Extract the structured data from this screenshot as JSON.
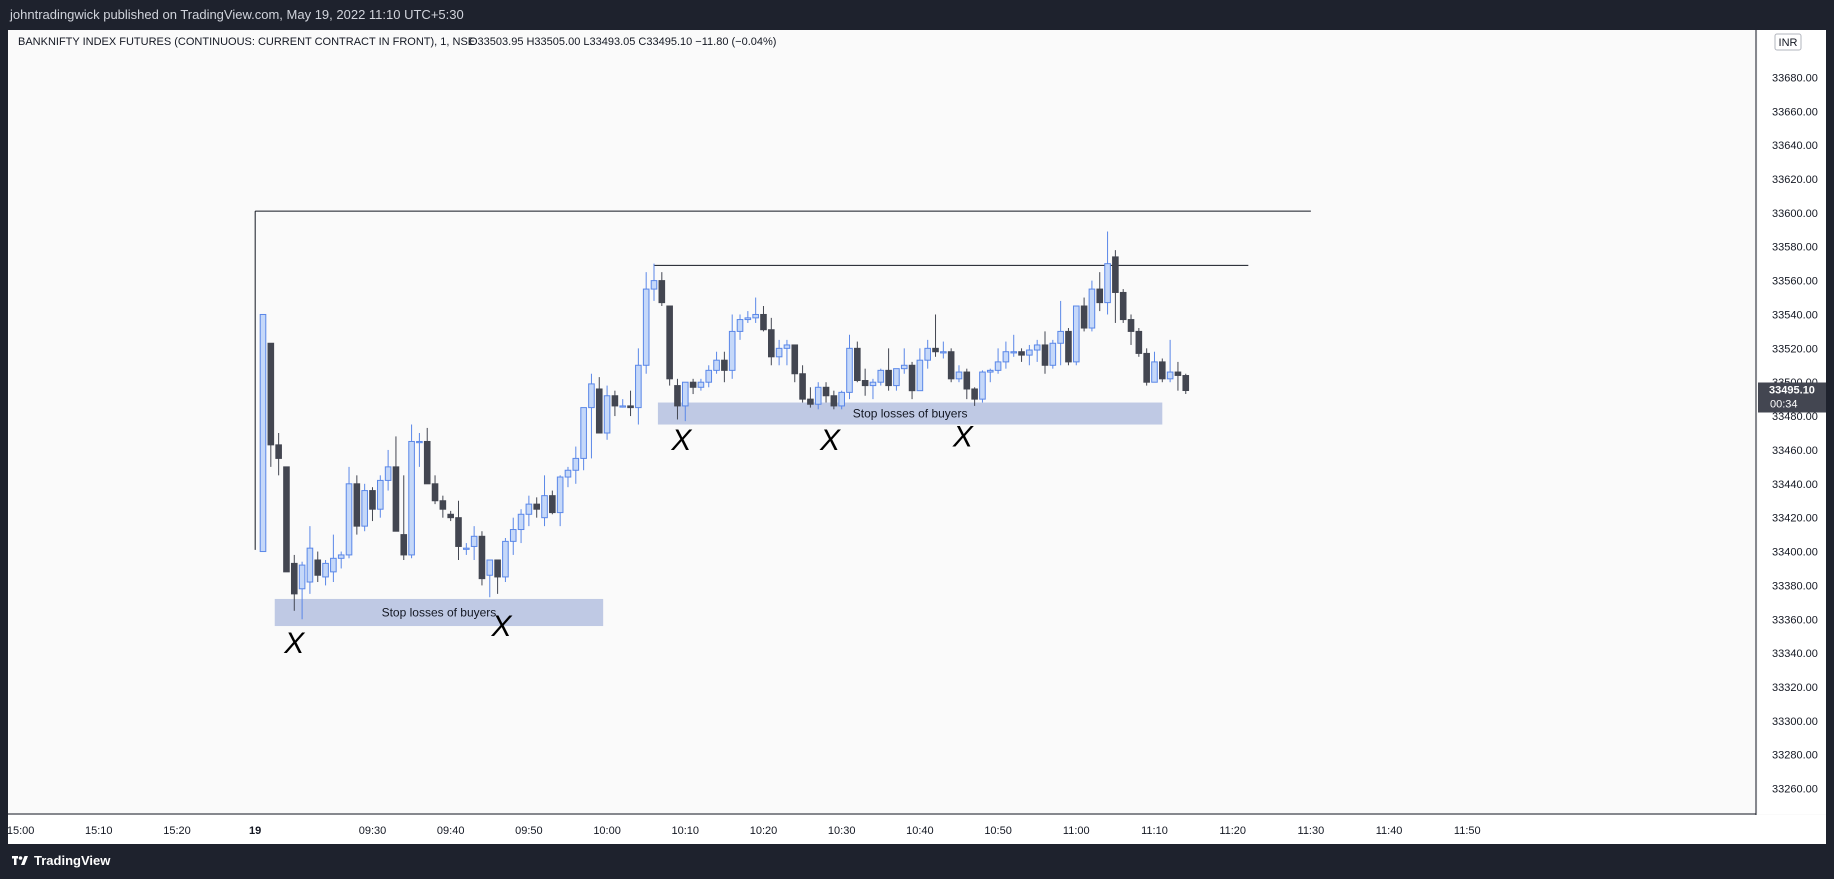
{
  "header": {
    "publisher": "johntradingwick published on TradingView.com, May 19, 2022 11:10 UTC+5:30"
  },
  "footer": {
    "brand": "TradingView"
  },
  "currency_badge": "INR",
  "legend": {
    "symbol": "BANKNIFTY INDEX FUTURES (CONTINUOUS: CURRENT CONTRACT IN FRONT), 1, NSE",
    "ohlc": "O33503.95  H33505.00  L33493.05  C33495.10  −11.80 (−0.04%)"
  },
  "price_tag": {
    "price": "33495.10",
    "countdown": "00:34"
  },
  "colors": {
    "up_fill": "#c5d8f9",
    "up_border": "#5a87e8",
    "down": "#434651",
    "zone": "#bcc6e3",
    "line": "#131722"
  },
  "chart_data": {
    "type": "candlestick",
    "title": "BANKNIFTY INDEX FUTURES (CONTINUOUS: CURRENT CONTRACT IN FRONT), 1, NSE",
    "y_axis": {
      "min": 33245,
      "max": 33708,
      "ticks": [
        33260,
        33280,
        33300,
        33320,
        33340,
        33360,
        33380,
        33400,
        33420,
        33440,
        33460,
        33480,
        33500,
        33520,
        33540,
        33560,
        33580,
        33600,
        33620,
        33640,
        33660,
        33680
      ],
      "position": "right"
    },
    "x_ticks": [
      {
        "label": "15:00",
        "i": -31
      },
      {
        "label": "15:10",
        "i": -21
      },
      {
        "label": "15:20",
        "i": -11
      },
      {
        "label": "19",
        "i": -1
      },
      {
        "label": "09:30",
        "i": 14
      },
      {
        "label": "09:40",
        "i": 24
      },
      {
        "label": "09:50",
        "i": 34
      },
      {
        "label": "10:00",
        "i": 44
      },
      {
        "label": "10:10",
        "i": 54
      },
      {
        "label": "10:20",
        "i": 64
      },
      {
        "label": "10:30",
        "i": 74
      },
      {
        "label": "10:40",
        "i": 84
      },
      {
        "label": "10:50",
        "i": 94
      },
      {
        "label": "11:00",
        "i": 104
      },
      {
        "label": "11:10",
        "i": 114
      },
      {
        "label": "11:20",
        "i": 124
      },
      {
        "label": "11:30",
        "i": 134
      },
      {
        "label": "11:40",
        "i": 144
      },
      {
        "label": "11:50",
        "i": 154
      }
    ],
    "candles": [
      [
        33400,
        33540,
        33400,
        33540
      ],
      [
        33523,
        33523,
        33450,
        33463
      ],
      [
        33463,
        33470,
        33445,
        33455
      ],
      [
        33450,
        33450,
        33388,
        33388
      ],
      [
        33393,
        33398,
        33365,
        33375
      ],
      [
        33378,
        33394,
        33360,
        33392
      ],
      [
        33382,
        33415,
        33375,
        33402
      ],
      [
        33395,
        33400,
        33382,
        33386
      ],
      [
        33385,
        33395,
        33380,
        33393
      ],
      [
        33388,
        33410,
        33382,
        33396
      ],
      [
        33396,
        33400,
        33390,
        33398
      ],
      [
        33398,
        33450,
        33396,
        33440
      ],
      [
        33440,
        33445,
        33410,
        33415
      ],
      [
        33415,
        33440,
        33412,
        33436
      ],
      [
        33436,
        33438,
        33418,
        33425
      ],
      [
        33425,
        33445,
        33420,
        33442
      ],
      [
        33442,
        33460,
        33436,
        33450
      ],
      [
        33450,
        33468,
        33412,
        33412
      ],
      [
        33410,
        33445,
        33395,
        33398
      ],
      [
        33398,
        33475,
        33396,
        33465
      ],
      [
        33465,
        33470,
        33450,
        33465
      ],
      [
        33465,
        33473,
        33440,
        33440
      ],
      [
        33440,
        33445,
        33428,
        33430
      ],
      [
        33430,
        33433,
        33420,
        33425
      ],
      [
        33422,
        33424,
        33418,
        33420
      ],
      [
        33420,
        33430,
        33395,
        33403
      ],
      [
        33402,
        33405,
        33398,
        33402
      ],
      [
        33403,
        33415,
        33395,
        33409
      ],
      [
        33409,
        33412,
        33380,
        33384
      ],
      [
        33386,
        33395,
        33373,
        33395
      ],
      [
        33395,
        33395,
        33375,
        33385
      ],
      [
        33385,
        33408,
        33382,
        33406
      ],
      [
        33406,
        33420,
        33398,
        33413
      ],
      [
        33413,
        33425,
        33405,
        33422
      ],
      [
        33422,
        33433,
        33415,
        33428
      ],
      [
        33428,
        33432,
        33420,
        33425
      ],
      [
        33420,
        33445,
        33415,
        33433
      ],
      [
        33433,
        33436,
        33422,
        33423
      ],
      [
        33423,
        33445,
        33415,
        33444
      ],
      [
        33444,
        33450,
        33438,
        33448
      ],
      [
        33448,
        33462,
        33440,
        33455
      ],
      [
        33455,
        33485,
        33448,
        33485
      ],
      [
        33485,
        33505,
        33455,
        33499
      ],
      [
        33496,
        33503,
        33470,
        33470
      ],
      [
        33470,
        33498,
        33466,
        33492
      ],
      [
        33492,
        33495,
        33480,
        33486
      ],
      [
        33486,
        33490,
        33485,
        33486
      ],
      [
        33486,
        33495,
        33480,
        33485
      ],
      [
        33485,
        33520,
        33475,
        33510
      ],
      [
        33510,
        33565,
        33505,
        33555
      ],
      [
        33555,
        33570,
        33548,
        33560
      ],
      [
        33560,
        33565,
        33545,
        33547
      ],
      [
        33545,
        33545,
        33498,
        33502
      ],
      [
        33498,
        33502,
        33478,
        33486
      ],
      [
        33486,
        33500,
        33477,
        33500
      ],
      [
        33500,
        33502,
        33493,
        33497
      ],
      [
        33497,
        33502,
        33495,
        33500
      ],
      [
        33500,
        33510,
        33497,
        33507
      ],
      [
        33507,
        33518,
        33505,
        33513
      ],
      [
        33513,
        33518,
        33500,
        33507
      ],
      [
        33507,
        33540,
        33502,
        33530
      ],
      [
        33530,
        33540,
        33525,
        33537
      ],
      [
        33537,
        33542,
        33535,
        33538
      ],
      [
        33538,
        33550,
        33535,
        33540
      ],
      [
        33540,
        33545,
        33530,
        33531
      ],
      [
        33531,
        33538,
        33510,
        33515
      ],
      [
        33515,
        33525,
        33510,
        33520
      ],
      [
        33520,
        33525,
        33510,
        33522
      ],
      [
        33522,
        33522,
        33500,
        33505
      ],
      [
        33505,
        33510,
        33488,
        33490
      ],
      [
        33490,
        33497,
        33485,
        33487
      ],
      [
        33487,
        33500,
        33484,
        33497
      ],
      [
        33497,
        33500,
        33488,
        33492
      ],
      [
        33492,
        33495,
        33484,
        33486
      ],
      [
        33486,
        33495,
        33484,
        33494
      ],
      [
        33494,
        33528,
        33490,
        33520
      ],
      [
        33520,
        33524,
        33500,
        33501
      ],
      [
        33501,
        33508,
        33492,
        33498
      ],
      [
        33498,
        33502,
        33490,
        33500
      ],
      [
        33500,
        33508,
        33498,
        33507
      ],
      [
        33507,
        33520,
        33495,
        33498
      ],
      [
        33498,
        33508,
        33495,
        33508
      ],
      [
        33508,
        33520,
        33505,
        33510
      ],
      [
        33510,
        33512,
        33490,
        33495
      ],
      [
        33495,
        33520,
        33495,
        33513
      ],
      [
        33513,
        33525,
        33508,
        33520
      ],
      [
        33520,
        33540,
        33515,
        33518
      ],
      [
        33518,
        33524,
        33514,
        33518
      ],
      [
        33518,
        33520,
        33500,
        33502
      ],
      [
        33502,
        33510,
        33500,
        33506
      ],
      [
        33506,
        33508,
        33490,
        33496
      ],
      [
        33496,
        33497,
        33486,
        33490
      ],
      [
        33490,
        33507,
        33488,
        33506
      ],
      [
        33506,
        33508,
        33500,
        33507
      ],
      [
        33507,
        33520,
        33505,
        33512
      ],
      [
        33512,
        33524,
        33508,
        33518
      ],
      [
        33518,
        33528,
        33515,
        33518
      ],
      [
        33518,
        33520,
        33512,
        33516
      ],
      [
        33516,
        33522,
        33510,
        33519
      ],
      [
        33519,
        33525,
        33512,
        33522
      ],
      [
        33522,
        33530,
        33505,
        33510
      ],
      [
        33510,
        33525,
        33508,
        33523
      ],
      [
        33523,
        33548,
        33510,
        33530
      ],
      [
        33530,
        33532,
        33510,
        33512
      ],
      [
        33512,
        33545,
        33510,
        33545
      ],
      [
        33545,
        33550,
        33530,
        33532
      ],
      [
        33532,
        33560,
        33530,
        33555
      ],
      [
        33555,
        33565,
        33542,
        33547
      ],
      [
        33547,
        33589,
        33540,
        33570
      ],
      [
        33574,
        33578,
        33535,
        33553
      ],
      [
        33553,
        33555,
        33535,
        33537
      ],
      [
        33537,
        33540,
        33522,
        33530
      ],
      [
        33530,
        33532,
        33515,
        33517
      ],
      [
        33517,
        33520,
        33498,
        33500
      ],
      [
        33500,
        33518,
        33500,
        33512
      ],
      [
        33512,
        33514,
        33500,
        33502
      ],
      [
        33502,
        33525,
        33500,
        33506
      ],
      [
        33506,
        33512,
        33495,
        33504
      ],
      [
        33503.95,
        33505,
        33493.05,
        33495.1
      ]
    ],
    "horizontal_lines": [
      {
        "price": 33601,
        "from": -1,
        "to": 134
      },
      {
        "price": 33569,
        "from": 50,
        "to": 126
      }
    ],
    "vertical_line": {
      "i": -1,
      "from": 33401,
      "to": 33601
    },
    "zones": [
      {
        "label": "Stop losses of buyers",
        "from": 1.5,
        "to": 43.5,
        "top": 33372,
        "bottom": 33356
      },
      {
        "label": "Stop losses of buyers",
        "from": 50.5,
        "to": 115,
        "top": 33488,
        "bottom": 33475
      }
    ],
    "marks": [
      {
        "text": "X",
        "i": 4,
        "price": 33340
      },
      {
        "text": "X",
        "i": 30.5,
        "price": 33350
      },
      {
        "text": "X",
        "i": 53.5,
        "price": 33460
      },
      {
        "text": "X",
        "i": 72.5,
        "price": 33460
      },
      {
        "text": "X",
        "i": 89.5,
        "price": 33462
      }
    ],
    "last_price": 33495.1
  }
}
